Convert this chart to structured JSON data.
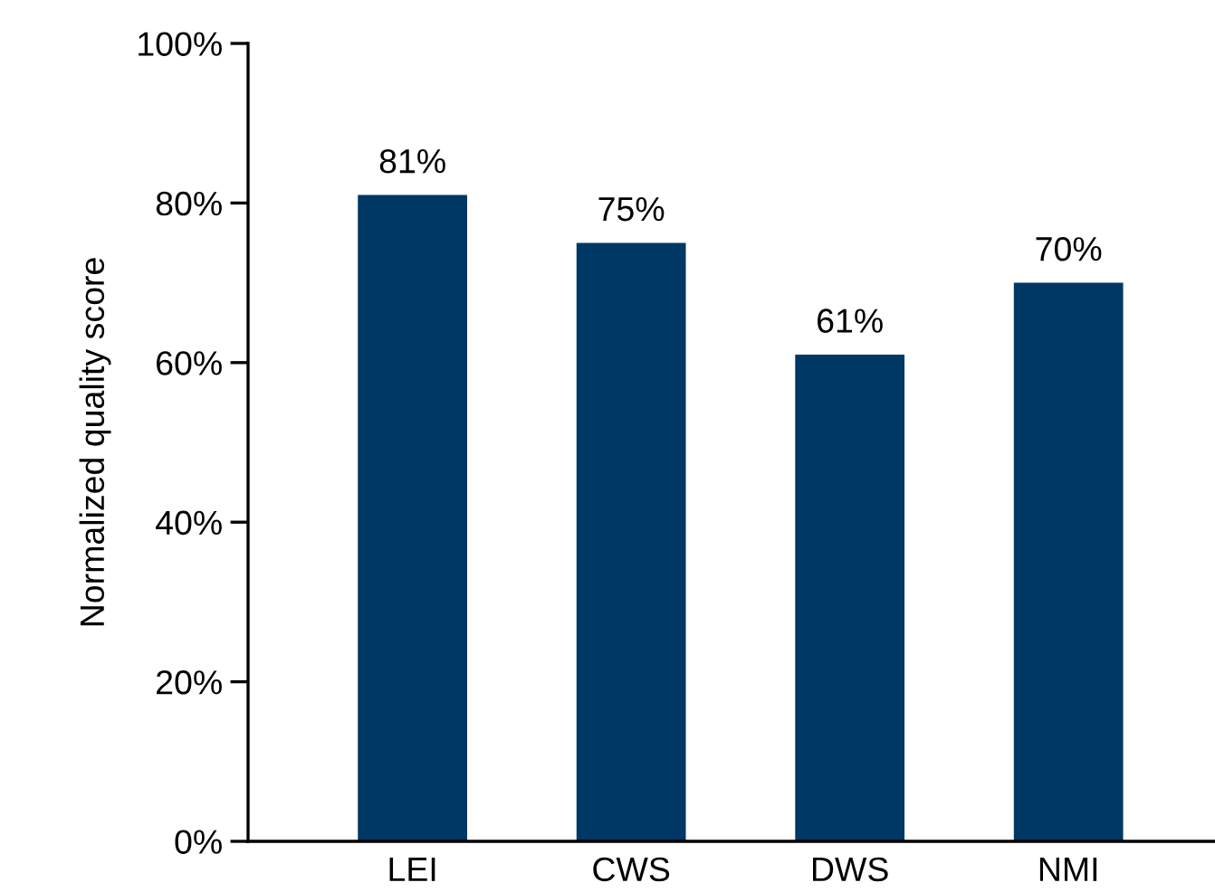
{
  "chart_data": {
    "type": "bar",
    "ylabel": "Normalized quality score",
    "categories": [
      "LEI",
      "CWS",
      "DWS",
      "NMI"
    ],
    "values": [
      81,
      75,
      61,
      70
    ],
    "value_labels": [
      "81%",
      "75%",
      "61%",
      "70%"
    ],
    "color": "#003865",
    "ylim": [
      0,
      100
    ],
    "yticks": [
      {
        "value": 0,
        "label": "0%"
      },
      {
        "value": 20,
        "label": "20%"
      },
      {
        "value": 40,
        "label": "40%"
      },
      {
        "value": 60,
        "label": "60%"
      },
      {
        "value": 80,
        "label": "80%"
      },
      {
        "value": 100,
        "label": "100%"
      }
    ],
    "grid": false,
    "legend": false
  }
}
